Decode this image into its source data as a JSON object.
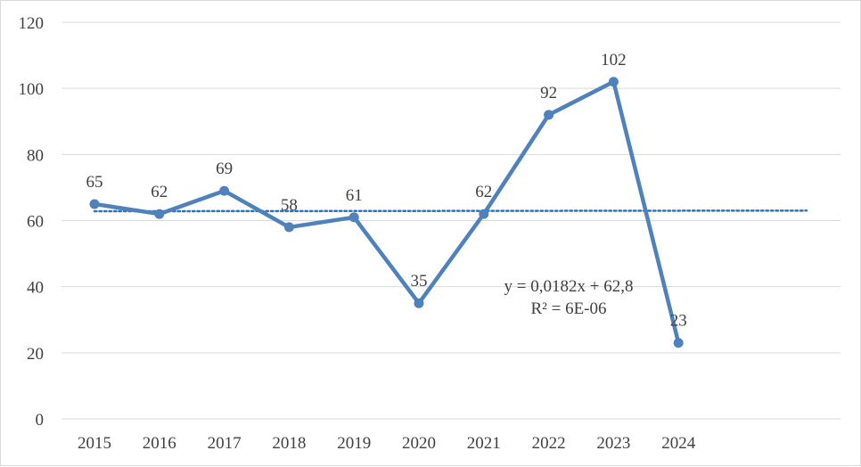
{
  "chart_data": {
    "type": "line",
    "x": [
      "2015",
      "2016",
      "2017",
      "2018",
      "2019",
      "2020",
      "2021",
      "2022",
      "2023",
      "2024"
    ],
    "series": [
      {
        "values": [
          65,
          62,
          69,
          58,
          61,
          35,
          62,
          92,
          102,
          23
        ],
        "color": "#4f81bd"
      }
    ],
    "data_labels": [
      "65",
      "62",
      "69",
      "58",
      "61",
      "35",
      "62",
      "92",
      "102",
      "23"
    ],
    "ylim": [
      0,
      120
    ],
    "y_ticks": [
      0,
      20,
      40,
      60,
      80,
      100,
      120
    ],
    "y_tick_labels": [
      "0",
      "20",
      "40",
      "60",
      "80",
      "100",
      "120"
    ],
    "grid": true,
    "legend": "none",
    "trendline": {
      "type": "linear",
      "slope": 0.0182,
      "intercept": 62.8,
      "color": "#2e75b6",
      "style": "dotted",
      "equation_text": "y = 0,0182x + 62,8",
      "r2_text": "R² = 6E-06"
    }
  }
}
